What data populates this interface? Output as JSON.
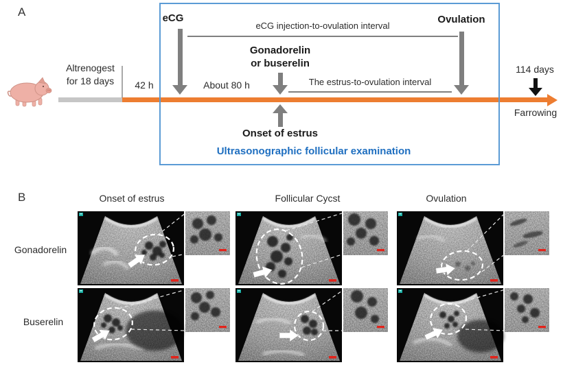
{
  "panel_a": {
    "label": "A",
    "pig_icon": "pig-icon",
    "altrenogest_line1": "Altrenogest",
    "altrenogest_line2": "for 18 days",
    "time_42h": "42 h",
    "ecg": "eCG",
    "ecg_interval": "eCG injection-to-ovulation interval",
    "gnrh_line1": "Gonadorelin",
    "gnrh_line2": "or buserelin",
    "about_80h": "About 80 h",
    "estrus_interval": "The estrus-to-ovulation interval",
    "ovulation": "Ovulation",
    "onset_of_estrus": "Onset of estrus",
    "exam": "Ultrasonographic follicular examination",
    "days_114": "114 days",
    "farrowing": "Farrowing"
  },
  "panel_b": {
    "label": "B",
    "column_headers": [
      "Onset of estrus",
      "Follicular Cycst",
      "Ovulation"
    ],
    "row_labels": [
      "Gonadorelin",
      "Buserelin"
    ],
    "marker_icon": "orientation-marker-icon",
    "scale_bar": "red-scale-bar"
  },
  "colors": {
    "timeline_orange": "#ed7d31",
    "box_blue": "#5b9bd5",
    "exam_text_blue": "#1f6fc0",
    "arrow_gray": "#7f7f7f",
    "altrenogest_bar_gray": "#c6c6c6",
    "scale_bar_red": "#e3231b",
    "marker_teal": "#18b0a6"
  }
}
